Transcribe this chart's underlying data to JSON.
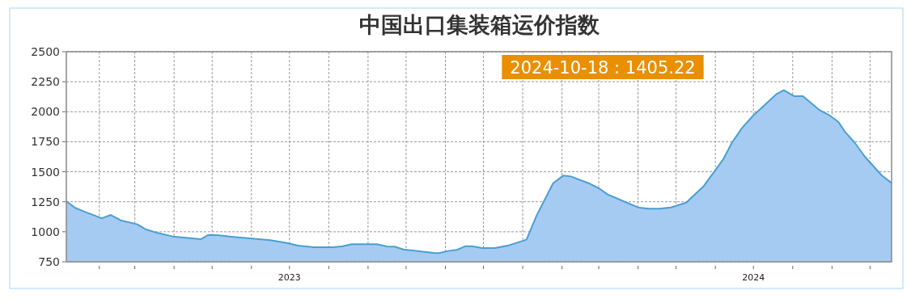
{
  "chart_data": {
    "type": "area",
    "title": "中国出口集装箱运价指数",
    "x": [
      "2023-01-06",
      "2023-01-13",
      "2023-01-21",
      "2023-02-03",
      "2023-02-10",
      "2023-02-18",
      "2023-03-03",
      "2023-03-10",
      "2023-03-19",
      "2023-03-31",
      "2023-04-22",
      "2023-04-28",
      "2023-05-05",
      "2023-05-18",
      "2023-06-16",
      "2023-06-29",
      "2023-07-08",
      "2023-07-16",
      "2023-07-20",
      "2023-08-04",
      "2023-08-12",
      "2023-08-19",
      "2023-09-08",
      "2023-09-16",
      "2023-09-22",
      "2023-09-29",
      "2023-10-24",
      "2023-10-27",
      "2023-11-03",
      "2023-11-10",
      "2023-11-17",
      "2023-11-22",
      "2023-11-30",
      "2023-12-10",
      "2023-12-21",
      "2024-01-04",
      "2024-01-12",
      "2024-01-25",
      "2024-02-02",
      "2024-02-08",
      "2024-02-22",
      "2024-03-02",
      "2024-03-08",
      "2024-04-01",
      "2024-04-09",
      "2024-04-18",
      "2024-04-27",
      "2024-05-09",
      "2024-05-23",
      "2024-06-07",
      "2024-06-14",
      "2024-06-22",
      "2024-07-01",
      "2024-07-19",
      "2024-07-25",
      "2024-08-02",
      "2024-08-09",
      "2024-08-22",
      "2024-08-30",
      "2024-09-06",
      "2024-09-11",
      "2024-09-19",
      "2024-09-27",
      "2024-10-10",
      "2024-10-18"
    ],
    "series": [
      {
        "color": "#4a9fd0",
        "values": [
          1255,
          1199,
          1165,
          1113,
          1140,
          1095,
          1062,
          1019,
          990,
          961,
          938,
          974,
          972,
          957,
          930,
          907,
          885,
          876,
          871,
          871,
          880,
          896,
          896,
          878,
          876,
          853,
          822,
          822,
          840,
          849,
          880,
          880,
          864,
          864,
          887,
          934,
          1136,
          1405,
          1468,
          1461,
          1405,
          1356,
          1311,
          1203,
          1192,
          1192,
          1203,
          1243,
          1383,
          1600,
          1741,
          1865,
          1970,
          2145,
          2179,
          2130,
          2130,
          2015,
          1970,
          1916,
          1836,
          1741,
          1625,
          1472,
          1405.22
        ]
      }
    ],
    "xlim": [
      "2023-01-06",
      "2024-10-18"
    ],
    "xticks": [
      {
        "value": "2023-02-01",
        "label": null
      },
      {
        "value": "2023-03-01",
        "label": null
      },
      {
        "value": "2023-04-01",
        "label": null
      },
      {
        "value": "2023-05-01",
        "label": null
      },
      {
        "value": "2023-06-01",
        "label": null
      },
      {
        "value": "2023-07-01",
        "label": "2023"
      },
      {
        "value": "2023-08-01",
        "label": null
      },
      {
        "value": "2023-09-01",
        "label": null
      },
      {
        "value": "2023-10-01",
        "label": null
      },
      {
        "value": "2023-11-01",
        "label": null
      },
      {
        "value": "2023-12-01",
        "label": null
      },
      {
        "value": "2024-01-01",
        "label": null
      },
      {
        "value": "2024-02-01",
        "label": null
      },
      {
        "value": "2024-03-01",
        "label": null
      },
      {
        "value": "2024-04-01",
        "label": null
      },
      {
        "value": "2024-05-01",
        "label": null
      },
      {
        "value": "2024-06-01",
        "label": null
      },
      {
        "value": "2024-07-01",
        "label": "2024"
      },
      {
        "value": "2024-08-01",
        "label": null
      },
      {
        "value": "2024-09-01",
        "label": null
      },
      {
        "value": "2024-10-01",
        "label": null
      }
    ],
    "ylim": [
      750,
      2500
    ],
    "yticks": [
      750,
      1000,
      1250,
      1500,
      1750,
      2000,
      2250,
      2500
    ],
    "grid": true,
    "annotations": [
      "2024-10-18 : 1405.22"
    ]
  }
}
